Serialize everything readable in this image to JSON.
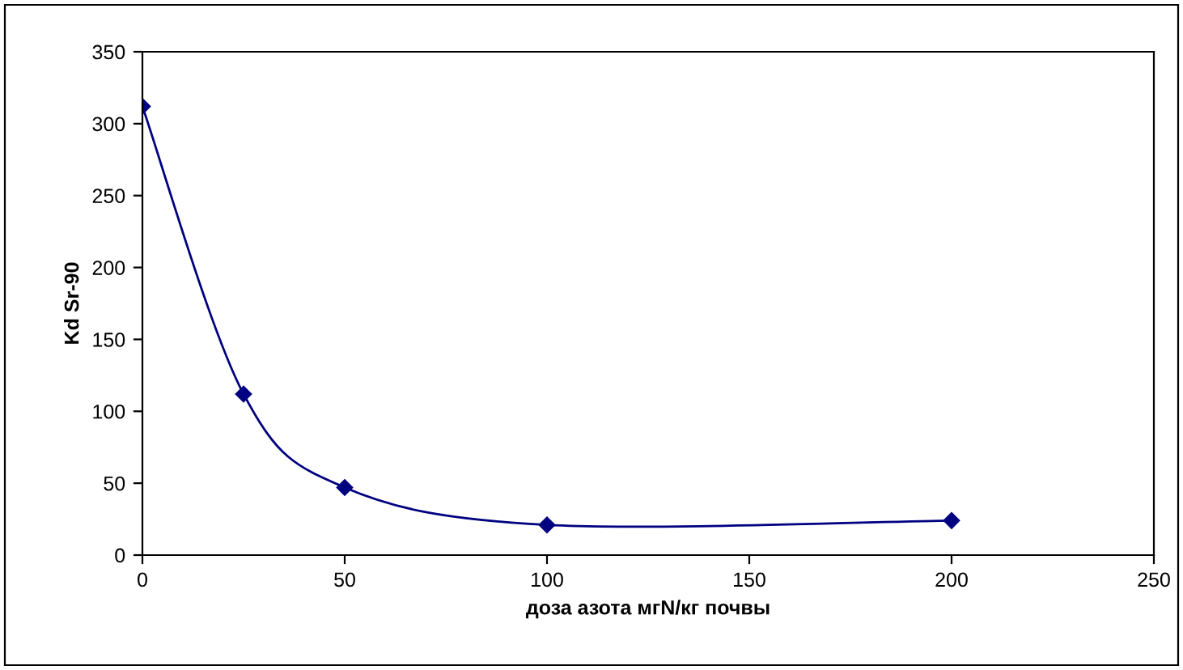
{
  "chart_data": {
    "type": "line",
    "xlabel": "доза азота мгN/кг почвы",
    "ylabel": "Kd Sr-90",
    "x": [
      0,
      25,
      50,
      100,
      200
    ],
    "series": [
      {
        "color": "#000080",
        "values": [
          312,
          112,
          47,
          21,
          24
        ]
      }
    ],
    "xlim": [
      0,
      250
    ],
    "xticks": [
      0,
      50,
      100,
      150,
      200,
      250
    ],
    "ylim": [
      0,
      350
    ],
    "yticks": [
      0,
      50,
      100,
      150,
      200,
      250,
      300,
      350
    ],
    "grid": false,
    "legend": false,
    "marker": "diamond",
    "line_style": "solid"
  }
}
